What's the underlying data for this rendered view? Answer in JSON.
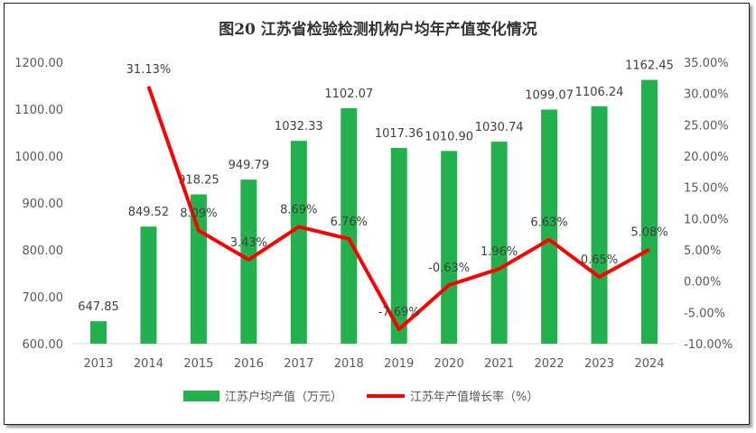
{
  "chart_data": {
    "type": "bar+line",
    "title": "图20  江苏省检验检测机构户均年产值变化情况",
    "categories": [
      "2013",
      "2014",
      "2015",
      "2016",
      "2017",
      "2018",
      "2019",
      "2020",
      "2021",
      "2022",
      "2023",
      "2024"
    ],
    "series": [
      {
        "name": "江苏户均产值（万元）",
        "type": "bar",
        "axis": "left",
        "color": "#22b14c",
        "values": [
          647.85,
          849.52,
          918.25,
          949.79,
          1032.33,
          1102.07,
          1017.36,
          1010.9,
          1030.74,
          1099.07,
          1106.24,
          1162.45
        ],
        "labels": [
          "647.85",
          "849.52",
          "918.25",
          "949.79",
          "1032.33",
          "1102.07",
          "1017.36",
          "1010.90",
          "1030.74",
          "1099.07",
          "1106.24",
          "1162.45"
        ]
      },
      {
        "name": "江苏年产值增长率（%）",
        "type": "line",
        "axis": "right",
        "color": "#ff0000",
        "values": [
          null,
          31.13,
          8.09,
          3.43,
          8.69,
          6.76,
          -7.69,
          -0.63,
          1.96,
          6.63,
          0.65,
          5.08
        ],
        "labels": [
          "",
          "31.13%",
          "8.09%",
          "3.43%",
          "8.69%",
          "6.76%",
          "-7.69%",
          "-0.63%",
          "1.96%",
          "6.63%",
          "0.65%",
          "5.08%"
        ]
      }
    ],
    "left_axis": {
      "ylim": [
        600,
        1200
      ],
      "ticks": [
        "600.00",
        "700.00",
        "800.00",
        "900.00",
        "1000.00",
        "1100.00",
        "1200.00"
      ]
    },
    "right_axis": {
      "ylim": [
        -10,
        35
      ],
      "ticks": [
        "-10.00%",
        "-5.00%",
        "0.00%",
        "5.00%",
        "10.00%",
        "15.00%",
        "20.00%",
        "25.00%",
        "30.00%",
        "35.00%"
      ]
    },
    "grid": false,
    "legend": "bottom"
  }
}
